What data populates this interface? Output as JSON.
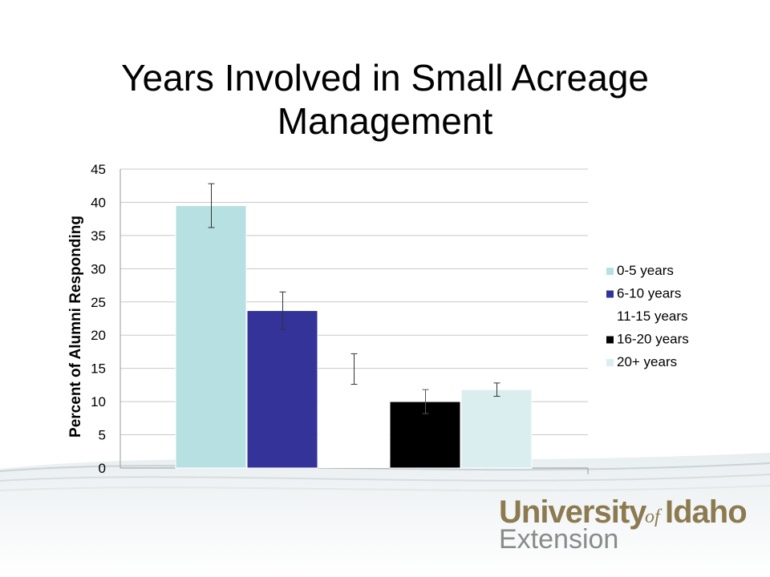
{
  "slide": {
    "title_line1": "Years Involved in Small Acreage",
    "title_line2": "Management"
  },
  "chart_data": {
    "type": "bar",
    "title": "",
    "xlabel": "",
    "ylabel": "Percent of Alumni Responding",
    "ylim": [
      0,
      45
    ],
    "yticks": [
      0,
      5,
      10,
      15,
      20,
      25,
      30,
      35,
      40,
      45
    ],
    "grid": true,
    "legend_position": "right",
    "series": [
      {
        "name": "0-5 years",
        "value": 39.5,
        "error": 3.3,
        "color": "#b7e0e3"
      },
      {
        "name": "6-10 years",
        "value": 23.7,
        "error": 2.8,
        "color": "#333399"
      },
      {
        "name": "11-15 years",
        "value": 14.9,
        "error": 2.3,
        "color": "#ffffff"
      },
      {
        "name": "16-20 years",
        "value": 10.0,
        "error": 1.8,
        "color": "#000000"
      },
      {
        "name": "20+ years",
        "value": 11.8,
        "error": 1.0,
        "color": "#daeef0"
      }
    ]
  },
  "branding": {
    "logo_university": "University",
    "logo_of": "of",
    "logo_idaho": "Idaho",
    "logo_extension": "Extension",
    "brand_color": "#8c7a50",
    "extension_color": "#8a8a8a"
  }
}
